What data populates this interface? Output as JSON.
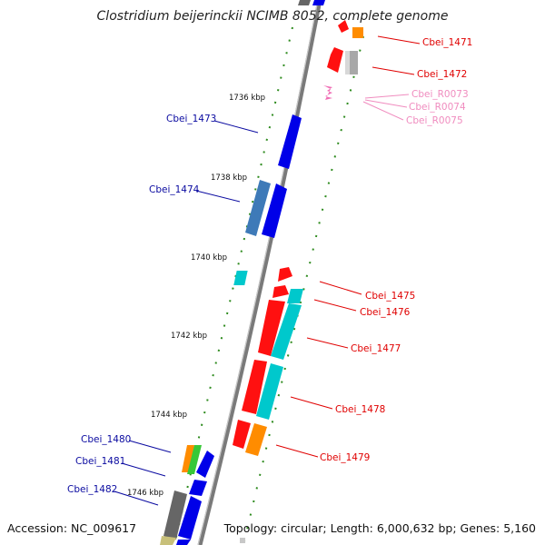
{
  "title": "Clostridium beijerinckii NCIMB 8052, complete genome",
  "footer": {
    "accession": "Accession: NC_009617",
    "summary": "Topology: circular; Length: 6,000,632 bp; Genes: 5,160"
  },
  "kbp_ticks": [
    "1736 kbp",
    "1738 kbp",
    "1740 kbp",
    "1742 kbp",
    "1744 kbp",
    "1746 kbp"
  ],
  "genes": {
    "left": [
      "Cbei_1473",
      "Cbei_1474",
      "Cbei_1480",
      "Cbei_1481",
      "Cbei_1482"
    ],
    "right_red": [
      "Cbei_1471",
      "Cbei_1472",
      "Cbei_1475",
      "Cbei_1476",
      "Cbei_1477",
      "Cbei_1478",
      "Cbei_1479"
    ],
    "rna": [
      "Cbei_R0073",
      "Cbei_R0074",
      "Cbei_R0075"
    ]
  },
  "colors": {
    "forward_label": "#0a0aa0",
    "reverse_label": "#e00000",
    "rna_label": "#f08cbf",
    "tick_green": "#2e8b1e",
    "backbone": "#808080"
  }
}
